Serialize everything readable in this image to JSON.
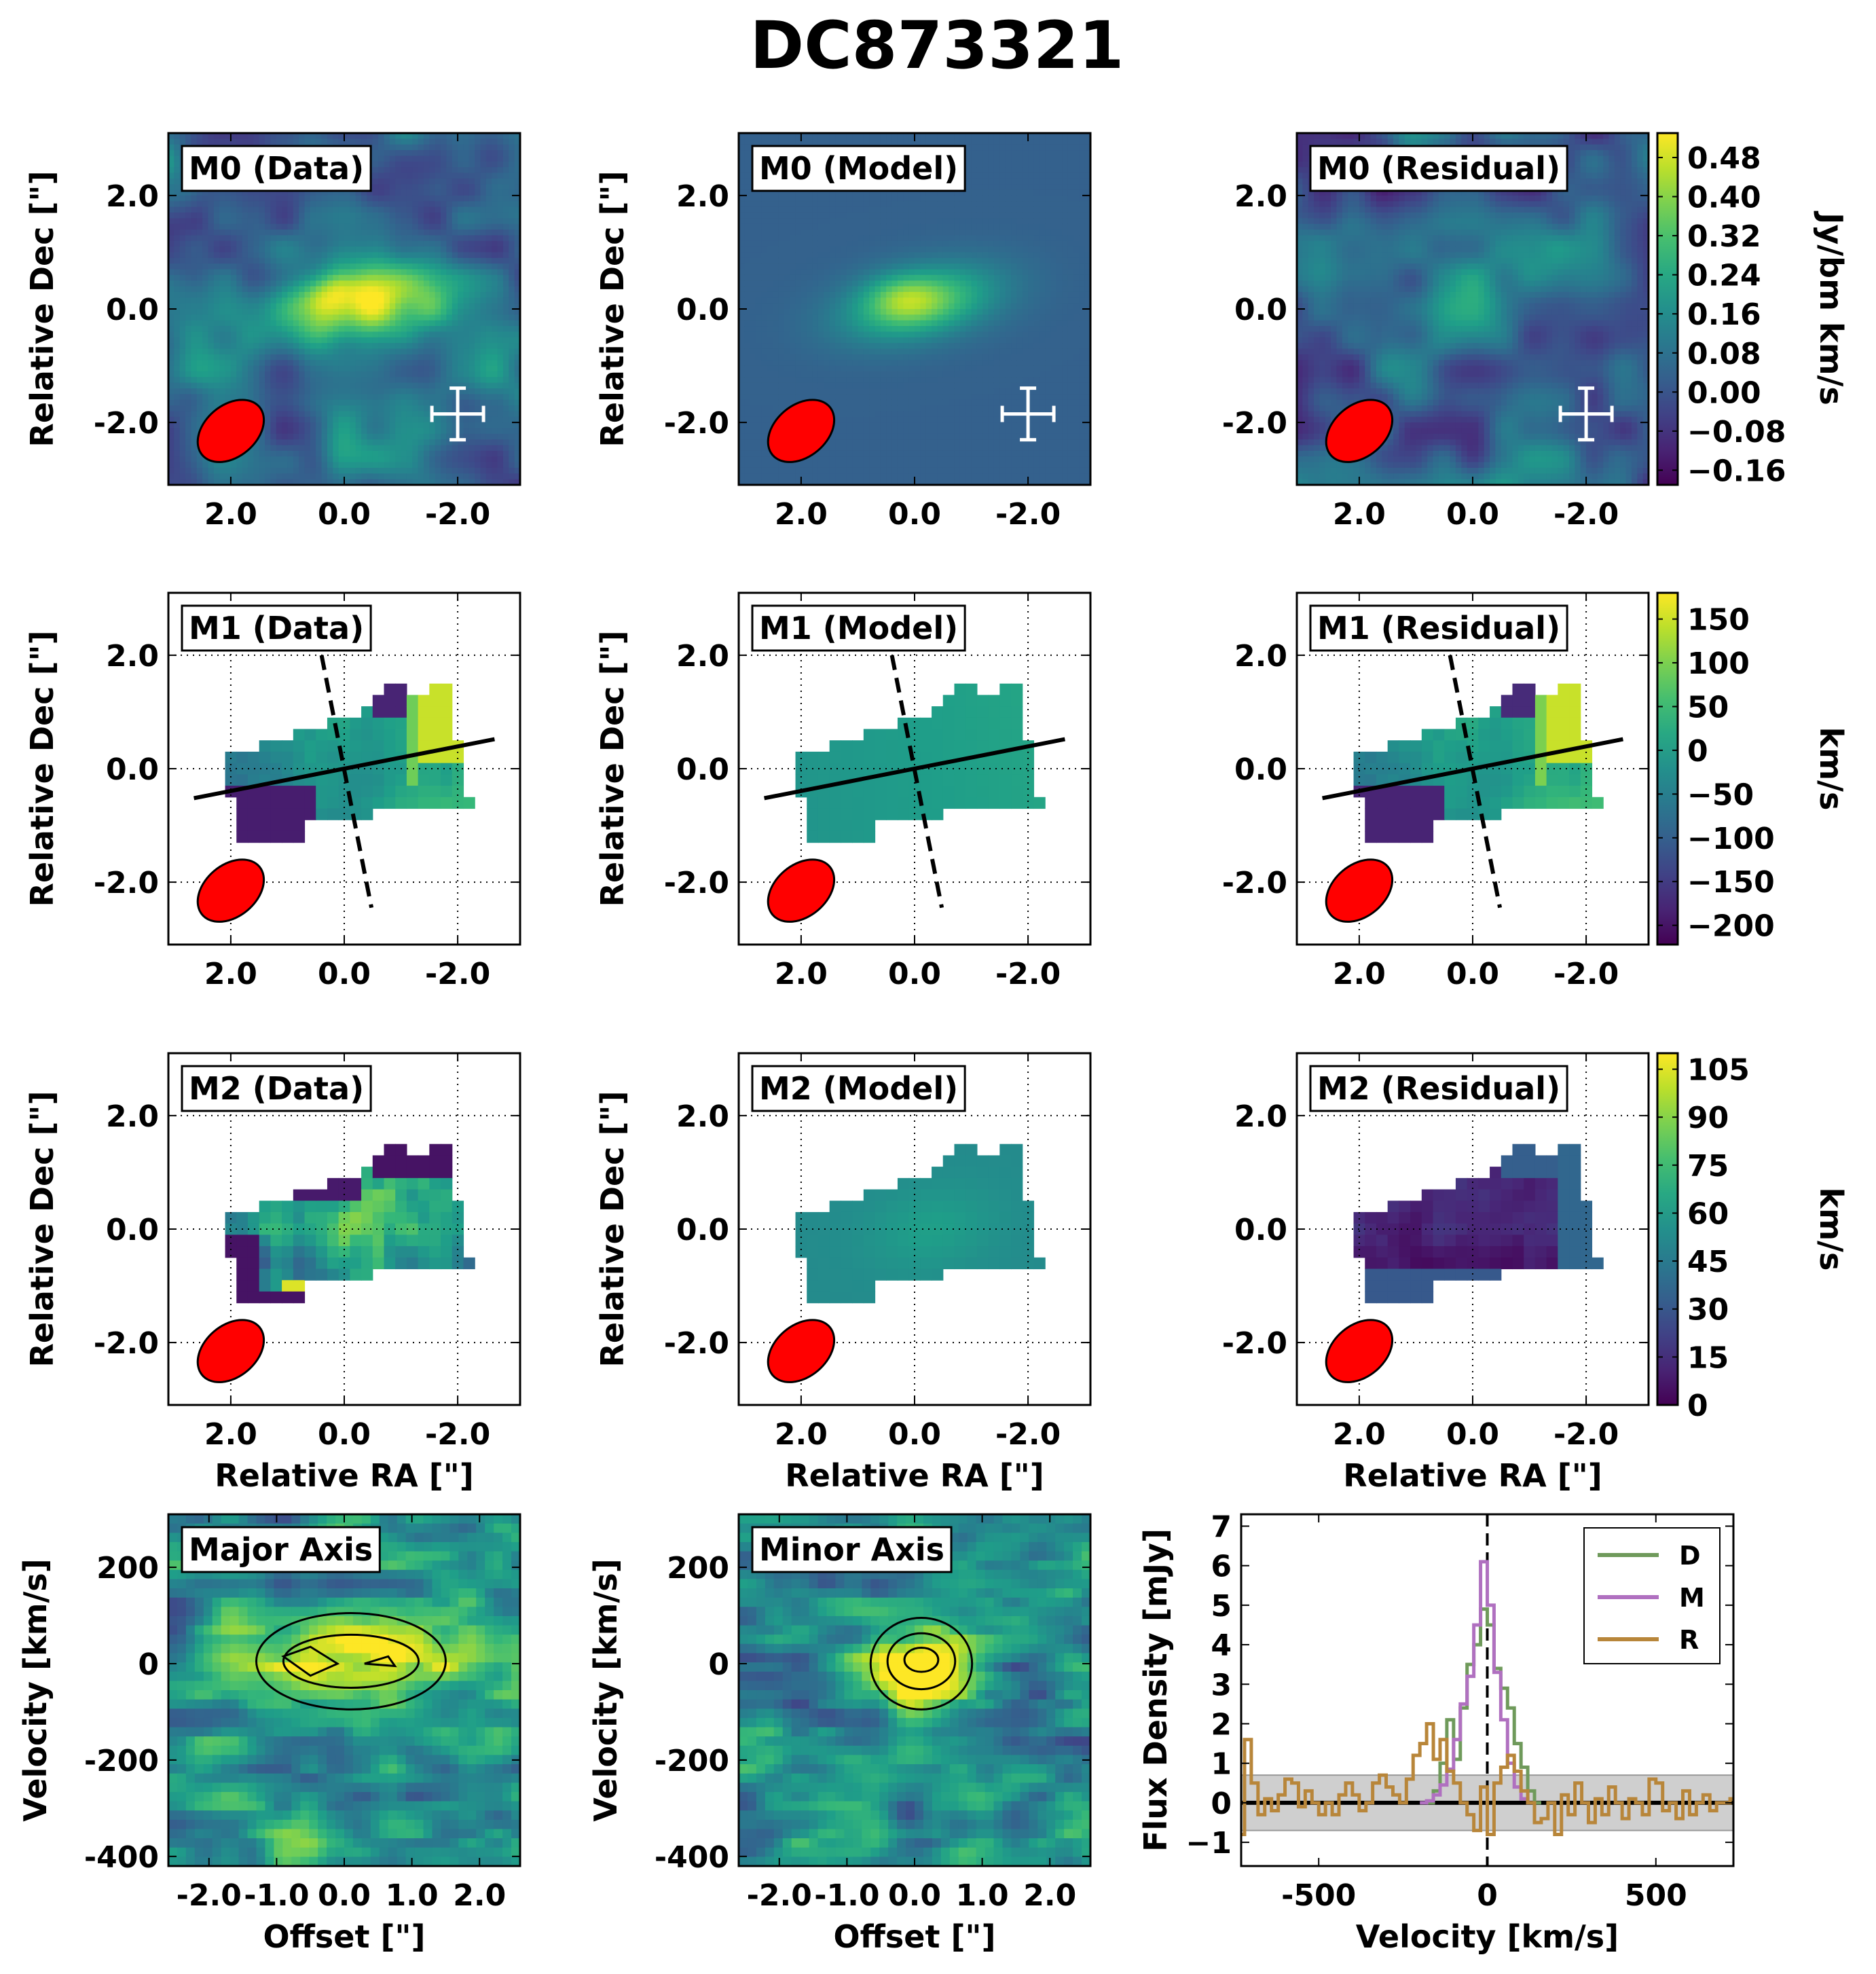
{
  "figure_title": "DC873321",
  "chart_data": [
    {
      "id": "m0-data",
      "type": "heatmap",
      "title": "M0 (Data)",
      "quantity": "moment-0 intensity",
      "colorscale": "viridis",
      "beam": true,
      "errorbar_cross": true,
      "ylabel": "Relative Dec [\"]",
      "xticks": [
        "2.0",
        "0.0",
        "-2.0"
      ],
      "yticks": [
        "2.0",
        "0.0",
        "-2.0"
      ]
    },
    {
      "id": "m0-model",
      "type": "heatmap",
      "title": "M0 (Model)",
      "quantity": "moment-0 intensity",
      "colorscale": "viridis",
      "beam": true,
      "errorbar_cross": true,
      "ylabel": "Relative Dec [\"]",
      "xticks": [
        "2.0",
        "0.0",
        "-2.0"
      ],
      "yticks": [
        "2.0",
        "0.0",
        "-2.0"
      ]
    },
    {
      "id": "m0-residual",
      "type": "heatmap",
      "title": "M0 (Residual)",
      "quantity": "moment-0 intensity",
      "colorscale": "viridis",
      "beam": true,
      "errorbar_cross": true,
      "xticks": [
        "2.0",
        "0.0",
        "-2.0"
      ],
      "yticks": [
        "2.0",
        "0.0",
        "-2.0"
      ],
      "colorbar": {
        "label": "Jy/bm km/s",
        "ticks": [
          "0.48",
          "0.40",
          "0.32",
          "0.24",
          "0.16",
          "0.08",
          "0.00",
          "−0.08",
          "−0.16"
        ],
        "range": [
          -0.19,
          0.53
        ]
      }
    },
    {
      "id": "m1-data",
      "type": "heatmap",
      "title": "M1 (Data)",
      "quantity": "velocity",
      "colorscale": "viridis",
      "beam": true,
      "grid": "dotted",
      "major_axis_line": true,
      "minor_axis_line": true,
      "ylabel": "Relative Dec [\"]",
      "xticks": [
        "2.0",
        "0.0",
        "-2.0"
      ],
      "yticks": [
        "2.0",
        "0.0",
        "-2.0"
      ]
    },
    {
      "id": "m1-model",
      "type": "heatmap",
      "title": "M1 (Model)",
      "quantity": "velocity",
      "colorscale": "viridis",
      "beam": true,
      "grid": "dotted",
      "major_axis_line": true,
      "minor_axis_line": true,
      "ylabel": "Relative Dec [\"]",
      "xticks": [
        "2.0",
        "0.0",
        "-2.0"
      ],
      "yticks": [
        "2.0",
        "0.0",
        "-2.0"
      ]
    },
    {
      "id": "m1-residual",
      "type": "heatmap",
      "title": "M1 (Residual)",
      "quantity": "velocity",
      "colorscale": "viridis",
      "beam": true,
      "grid": "dotted",
      "major_axis_line": true,
      "minor_axis_line": true,
      "xticks": [
        "2.0",
        "0.0",
        "-2.0"
      ],
      "yticks": [
        "2.0",
        "0.0",
        "-2.0"
      ],
      "colorbar": {
        "label": "km/s",
        "ticks": [
          "150",
          "100",
          "50",
          "0",
          "−50",
          "−100",
          "−150",
          "−200"
        ],
        "range": [
          -222,
          180
        ]
      }
    },
    {
      "id": "m2-data",
      "type": "heatmap",
      "title": "M2 (Data)",
      "quantity": "dispersion",
      "colorscale": "viridis",
      "beam": true,
      "grid": "dotted",
      "ylabel": "Relative Dec [\"]",
      "xlabel": "Relative RA [\"]",
      "xticks": [
        "2.0",
        "0.0",
        "-2.0"
      ],
      "yticks": [
        "2.0",
        "0.0",
        "-2.0"
      ]
    },
    {
      "id": "m2-model",
      "type": "heatmap",
      "title": "M2 (Model)",
      "quantity": "dispersion",
      "colorscale": "viridis",
      "beam": true,
      "grid": "dotted",
      "ylabel": "Relative Dec [\"]",
      "xlabel": "Relative RA [\"]",
      "xticks": [
        "2.0",
        "0.0",
        "-2.0"
      ],
      "yticks": [
        "2.0",
        "0.0",
        "-2.0"
      ]
    },
    {
      "id": "m2-residual",
      "type": "heatmap",
      "title": "M2 (Residual)",
      "quantity": "dispersion",
      "colorscale": "viridis",
      "beam": true,
      "grid": "dotted",
      "xlabel": "Relative RA [\"]",
      "xticks": [
        "2.0",
        "0.0",
        "-2.0"
      ],
      "yticks": [
        "2.0",
        "0.0",
        "-2.0"
      ],
      "colorbar": {
        "label": "km/s",
        "ticks": [
          "105",
          "90",
          "75",
          "60",
          "45",
          "30",
          "15",
          "0"
        ],
        "range": [
          0,
          110
        ]
      }
    },
    {
      "id": "pv-major",
      "type": "heatmap",
      "title": "Major Axis",
      "ylabel": "Velocity [km/s]",
      "xlabel": "Offset [\"]",
      "xticks": [
        "-2.0",
        "-1.0",
        "0.0",
        "1.0",
        "2.0"
      ],
      "yticks": [
        "200",
        "0",
        "-200",
        "-400"
      ],
      "contours": true
    },
    {
      "id": "pv-minor",
      "type": "heatmap",
      "title": "Minor Axis",
      "ylabel": "Velocity [km/s]",
      "xlabel": "Offset [\"]",
      "xticks": [
        "-2.0",
        "-1.0",
        "0.0",
        "1.0",
        "2.0"
      ],
      "yticks": [
        "200",
        "0",
        "-200",
        "-400"
      ],
      "contours": true
    },
    {
      "id": "spectrum",
      "type": "line",
      "xlabel": "Velocity [km/s]",
      "ylabel": "Flux Density [mJy]",
      "xlim": [
        -730,
        730
      ],
      "ylim": [
        -1.6,
        7.3
      ],
      "xticks": [
        "-500",
        "0",
        "500"
      ],
      "yticks": [
        "7",
        "6",
        "5",
        "4",
        "3",
        "2",
        "1",
        "0",
        "−1"
      ],
      "noise_band": [
        -0.7,
        0.7
      ],
      "zero_line": 0,
      "vline": 0,
      "legend": "top-right",
      "series": [
        {
          "name": "D",
          "color": "#6f9a5b",
          "x": [
            -170,
            -150,
            -130,
            -110,
            -90,
            -70,
            -50,
            -30,
            -10,
            10,
            30,
            50,
            70,
            90,
            110,
            130,
            150
          ],
          "y": [
            0.0,
            0.3,
            1.0,
            2.1,
            1.1,
            2.4,
            3.5,
            4.0,
            4.9,
            4.5,
            3.4,
            2.9,
            2.4,
            1.5,
            0.9,
            0.3,
            0.0
          ]
        },
        {
          "name": "M",
          "color": "#b070c0",
          "x": [
            -190,
            -170,
            -150,
            -130,
            -110,
            -90,
            -70,
            -50,
            -30,
            -10,
            10,
            30,
            50,
            70,
            90,
            110,
            130
          ],
          "y": [
            0.0,
            0.05,
            0.2,
            0.45,
            0.85,
            1.6,
            2.5,
            3.2,
            4.5,
            6.1,
            5.0,
            3.3,
            2.1,
            1.0,
            0.4,
            0.1,
            0.0
          ]
        },
        {
          "name": "R",
          "color": "#b8863a",
          "x": [
            -730,
            -710,
            -690,
            -670,
            -650,
            -630,
            -610,
            -590,
            -570,
            -550,
            -530,
            -510,
            -490,
            -470,
            -450,
            -430,
            -410,
            -390,
            -370,
            -350,
            -330,
            -310,
            -290,
            -270,
            -250,
            -230,
            -210,
            -190,
            -170,
            -150,
            -130,
            -110,
            -90,
            -70,
            -50,
            -30,
            -10,
            10,
            30,
            50,
            70,
            90,
            110,
            130,
            150,
            170,
            190,
            210,
            230,
            250,
            270,
            290,
            310,
            330,
            350,
            370,
            390,
            410,
            430,
            450,
            470,
            490,
            510,
            530,
            550,
            570,
            590,
            610,
            630,
            650,
            670,
            690,
            710,
            730
          ],
          "y": [
            -0.8,
            1.6,
            0.5,
            -0.3,
            0.1,
            -0.2,
            0.2,
            0.6,
            0.5,
            -0.1,
            0.3,
            0.0,
            -0.3,
            0.0,
            -0.3,
            0.2,
            0.5,
            0.2,
            -0.2,
            0.0,
            0.5,
            0.7,
            0.4,
            0.2,
            0.0,
            0.6,
            1.2,
            1.5,
            2.0,
            1.1,
            1.6,
            0.8,
            0.5,
            0.0,
            -0.3,
            -0.7,
            0.4,
            -0.8,
            0.5,
            0.9,
            1.2,
            0.8,
            0.3,
            0.0,
            -0.5,
            -0.4,
            0.0,
            -0.8,
            0.2,
            -0.3,
            0.5,
            0.0,
            -0.5,
            0.1,
            -0.3,
            0.4,
            0.0,
            -0.4,
            0.1,
            0.0,
            -0.3,
            0.6,
            0.5,
            -0.2,
            0.0,
            -0.4,
            0.3,
            -0.3,
            0.0,
            0.2,
            -0.2,
            0.0,
            0.0,
            0.1
          ]
        }
      ]
    }
  ]
}
